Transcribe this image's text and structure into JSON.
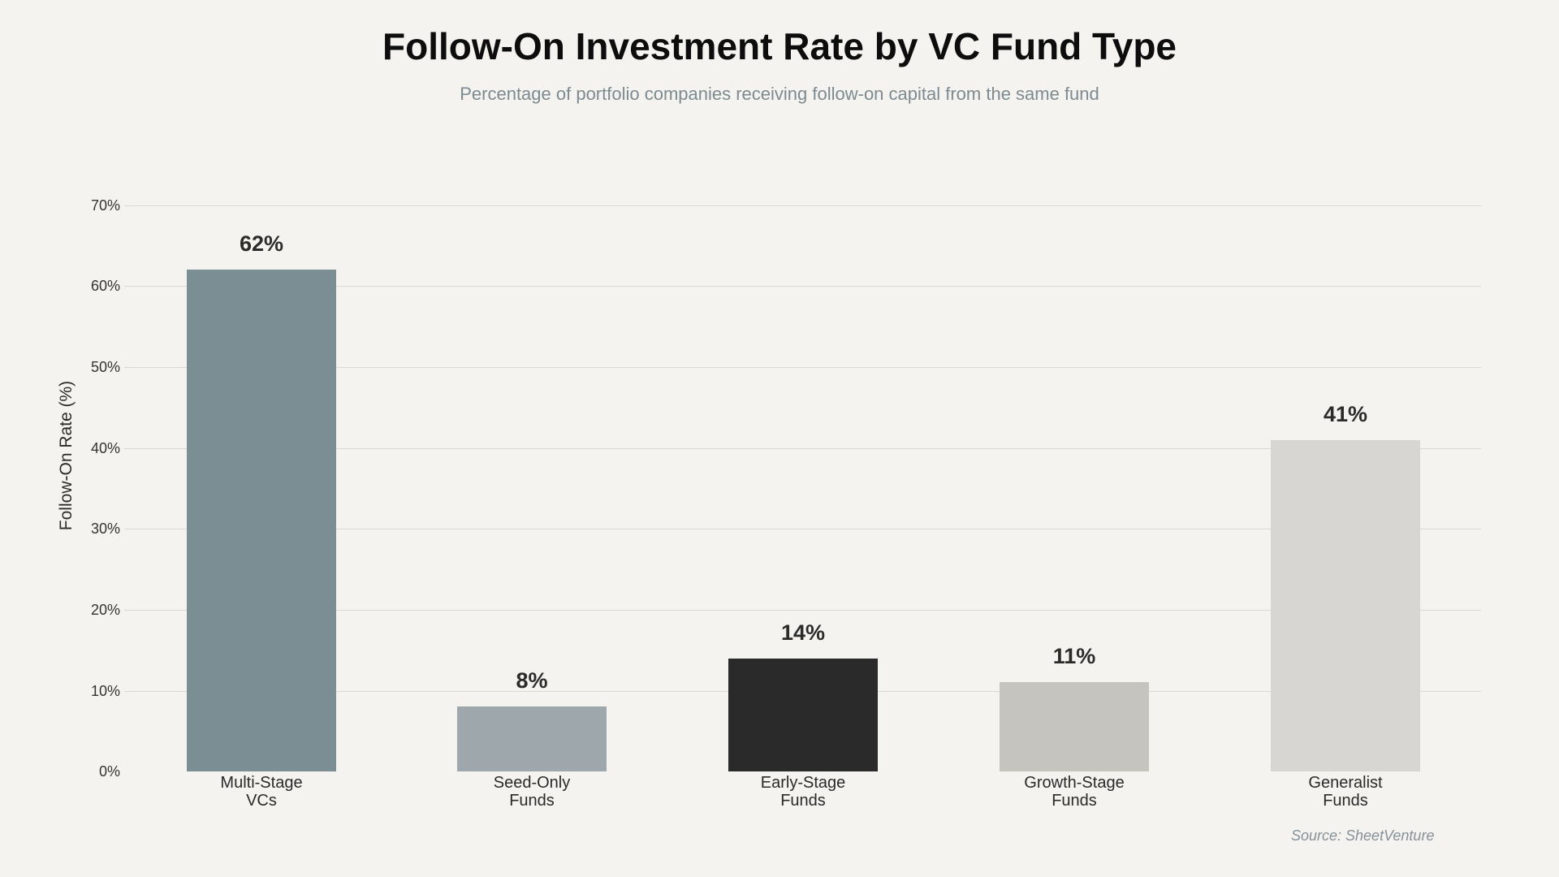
{
  "header": {
    "title": "Follow-On Investment Rate by VC Fund Type",
    "subtitle": "Percentage of portfolio companies receiving follow-on capital from the same fund"
  },
  "axes": {
    "ylabel": "Follow-On Rate (%)",
    "yticks": [
      "0%",
      "10%",
      "20%",
      "30%",
      "40%",
      "50%",
      "60%",
      "70%"
    ]
  },
  "bars": [
    {
      "line1": "Multi-Stage",
      "line2": "VCs",
      "value": 62,
      "label": "62%",
      "color": "#7b8e94"
    },
    {
      "line1": "Seed-Only",
      "line2": "Funds",
      "value": 8,
      "label": "8%",
      "color": "#9ea8ac"
    },
    {
      "line1": "Early-Stage",
      "line2": "Funds",
      "value": 14,
      "label": "14%",
      "color": "#2a2a2a"
    },
    {
      "line1": "Growth-Stage",
      "line2": "Funds",
      "value": 11,
      "label": "11%",
      "color": "#c5c4bf"
    },
    {
      "line1": "Generalist",
      "line2": "Funds",
      "value": 41,
      "label": "41%",
      "color": "#d7d6d2"
    }
  ],
  "footer": {
    "source": "Source: SheetVenture"
  },
  "chart_data": {
    "type": "bar",
    "title": "Follow-On Investment Rate by VC Fund Type",
    "subtitle": "Percentage of portfolio companies receiving follow-on capital from the same fund",
    "categories": [
      "Multi-Stage VCs",
      "Seed-Only Funds",
      "Early-Stage Funds",
      "Growth-Stage Funds",
      "Generalist Funds"
    ],
    "values": [
      62,
      8,
      14,
      11,
      41
    ],
    "data_labels": [
      "62%",
      "8%",
      "14%",
      "11%",
      "41%"
    ],
    "colors": [
      "#7b8e94",
      "#9ea8ac",
      "#2a2a2a",
      "#c5c4bf",
      "#d7d6d2"
    ],
    "xlabel": "",
    "ylabel": "Follow-On Rate (%)",
    "ylim": [
      0,
      70
    ],
    "yticks": [
      0,
      10,
      20,
      30,
      40,
      50,
      60,
      70
    ],
    "grid": "horizontal",
    "legend": "none",
    "source": "Source: SheetVenture"
  }
}
